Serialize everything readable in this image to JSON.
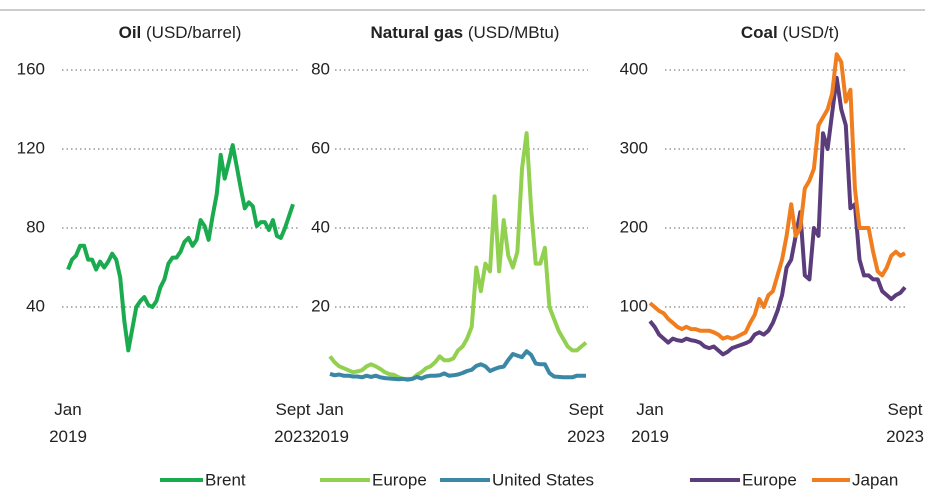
{
  "chart_data": [
    {
      "type": "line",
      "title": "Oil",
      "unit": "(USD/barrel)",
      "categories": [
        "Jan 2019",
        null,
        null,
        null,
        null,
        null,
        null,
        null,
        null,
        null,
        null,
        null,
        null,
        null,
        null,
        null,
        null,
        null,
        null,
        null,
        null,
        null,
        null,
        null,
        null,
        null,
        null,
        null,
        null,
        null,
        null,
        null,
        null,
        null,
        null,
        null,
        null,
        null,
        null,
        null,
        null,
        null,
        null,
        null,
        null,
        null,
        null,
        null,
        null,
        null,
        null,
        null,
        null,
        null,
        null,
        null,
        "Sept 2023"
      ],
      "series": [
        {
          "name": "Brent",
          "color": "#1bab4f",
          "values": [
            59,
            64,
            66,
            71,
            71,
            64,
            64,
            59,
            63,
            60,
            63,
            67,
            64,
            55,
            33,
            18,
            29,
            40,
            43,
            45,
            41,
            40,
            43,
            50,
            54,
            62,
            65,
            65,
            68,
            73,
            75,
            71,
            74,
            84,
            81,
            74,
            86,
            97,
            117,
            105,
            113,
            122,
            111,
            100,
            90,
            93,
            91,
            81,
            83,
            83,
            79,
            84,
            76,
            75,
            80,
            86,
            92
          ]
        }
      ],
      "ylim": [
        0,
        160
      ],
      "yticks": [
        40,
        80,
        120,
        160
      ],
      "grid": true
    },
    {
      "type": "line",
      "title": "Natural gas",
      "unit": "(USD/MBtu)",
      "categories": [
        "Jan 2019",
        null,
        null,
        null,
        null,
        null,
        null,
        null,
        null,
        null,
        null,
        null,
        null,
        null,
        null,
        null,
        null,
        null,
        null,
        null,
        null,
        null,
        null,
        null,
        null,
        null,
        null,
        null,
        null,
        null,
        null,
        null,
        null,
        null,
        null,
        null,
        null,
        null,
        null,
        null,
        null,
        null,
        null,
        null,
        null,
        null,
        null,
        null,
        null,
        null,
        null,
        null,
        null,
        null,
        null,
        null,
        "Sept 2023"
      ],
      "series": [
        {
          "name": "Europe",
          "color": "#92d050",
          "values": [
            7.5,
            6,
            5,
            4.5,
            4,
            3.5,
            3.7,
            4,
            5,
            5.5,
            5,
            4.3,
            3.5,
            3,
            2.8,
            2.2,
            1.8,
            1.8,
            1.8,
            2.8,
            3.5,
            4.5,
            5,
            6,
            7.5,
            6.5,
            6.5,
            7,
            9,
            10,
            12,
            15,
            30,
            24,
            31,
            29,
            48,
            29,
            42,
            33,
            30,
            34,
            55,
            64,
            45,
            31,
            31,
            35,
            20,
            17,
            14,
            12,
            10,
            9,
            9,
            10,
            11
          ]
        },
        {
          "name": "United States",
          "color": "#3a88a5",
          "values": [
            3.1,
            2.7,
            2.9,
            2.6,
            2.6,
            2.4,
            2.4,
            2.2,
            2.6,
            2.3,
            2.6,
            2.2,
            2,
            1.9,
            1.8,
            1.7,
            1.8,
            1.6,
            1.8,
            2.3,
            1.9,
            2.4,
            2.6,
            2.6,
            2.7,
            3.2,
            2.6,
            2.7,
            2.9,
            3.3,
            3.8,
            4.1,
            5.1,
            5.5,
            5,
            3.8,
            4.3,
            4.7,
            4.9,
            6.6,
            8.1,
            7.7,
            7.3,
            8.8,
            7.9,
            5.7,
            5.5,
            5.5,
            3.3,
            2.4,
            2.3,
            2.2,
            2.2,
            2.2,
            2.6,
            2.6,
            2.6
          ]
        }
      ],
      "ylim": [
        0,
        80
      ],
      "yticks": [
        20,
        40,
        60,
        80
      ],
      "grid": true
    },
    {
      "type": "line",
      "title": "Coal",
      "unit": "(USD/t)",
      "categories": [
        "Jan 2019",
        null,
        null,
        null,
        null,
        null,
        null,
        null,
        null,
        null,
        null,
        null,
        null,
        null,
        null,
        null,
        null,
        null,
        null,
        null,
        null,
        null,
        null,
        null,
        null,
        null,
        null,
        null,
        null,
        null,
        null,
        null,
        null,
        null,
        null,
        null,
        null,
        null,
        null,
        null,
        null,
        null,
        null,
        null,
        null,
        null,
        null,
        null,
        null,
        null,
        null,
        null,
        null,
        null,
        null,
        null,
        "Sept 2023"
      ],
      "series": [
        {
          "name": "Europe",
          "color": "#5c3d7c",
          "values": [
            82,
            75,
            65,
            60,
            55,
            60,
            58,
            57,
            60,
            58,
            57,
            55,
            50,
            48,
            50,
            45,
            40,
            43,
            48,
            50,
            52,
            54,
            57,
            65,
            68,
            65,
            70,
            80,
            95,
            115,
            150,
            160,
            190,
            220,
            140,
            135,
            200,
            190,
            320,
            300,
            345,
            390,
            350,
            330,
            225,
            230,
            160,
            140,
            140,
            135,
            135,
            120,
            115,
            110,
            115,
            118,
            125
          ]
        },
        {
          "name": "Japan",
          "color": "#f07e1e",
          "values": [
            105,
            100,
            95,
            92,
            85,
            80,
            75,
            72,
            75,
            72,
            72,
            70,
            70,
            70,
            68,
            65,
            60,
            62,
            60,
            62,
            65,
            68,
            80,
            90,
            110,
            100,
            115,
            120,
            140,
            160,
            190,
            230,
            190,
            200,
            250,
            260,
            275,
            330,
            340,
            350,
            370,
            420,
            410,
            360,
            375,
            250,
            200,
            200,
            200,
            170,
            145,
            140,
            150,
            165,
            170,
            165,
            168
          ]
        }
      ],
      "ylim": [
        0,
        400
      ],
      "yticks": [
        100,
        200,
        300,
        400
      ],
      "grid": true
    }
  ]
}
